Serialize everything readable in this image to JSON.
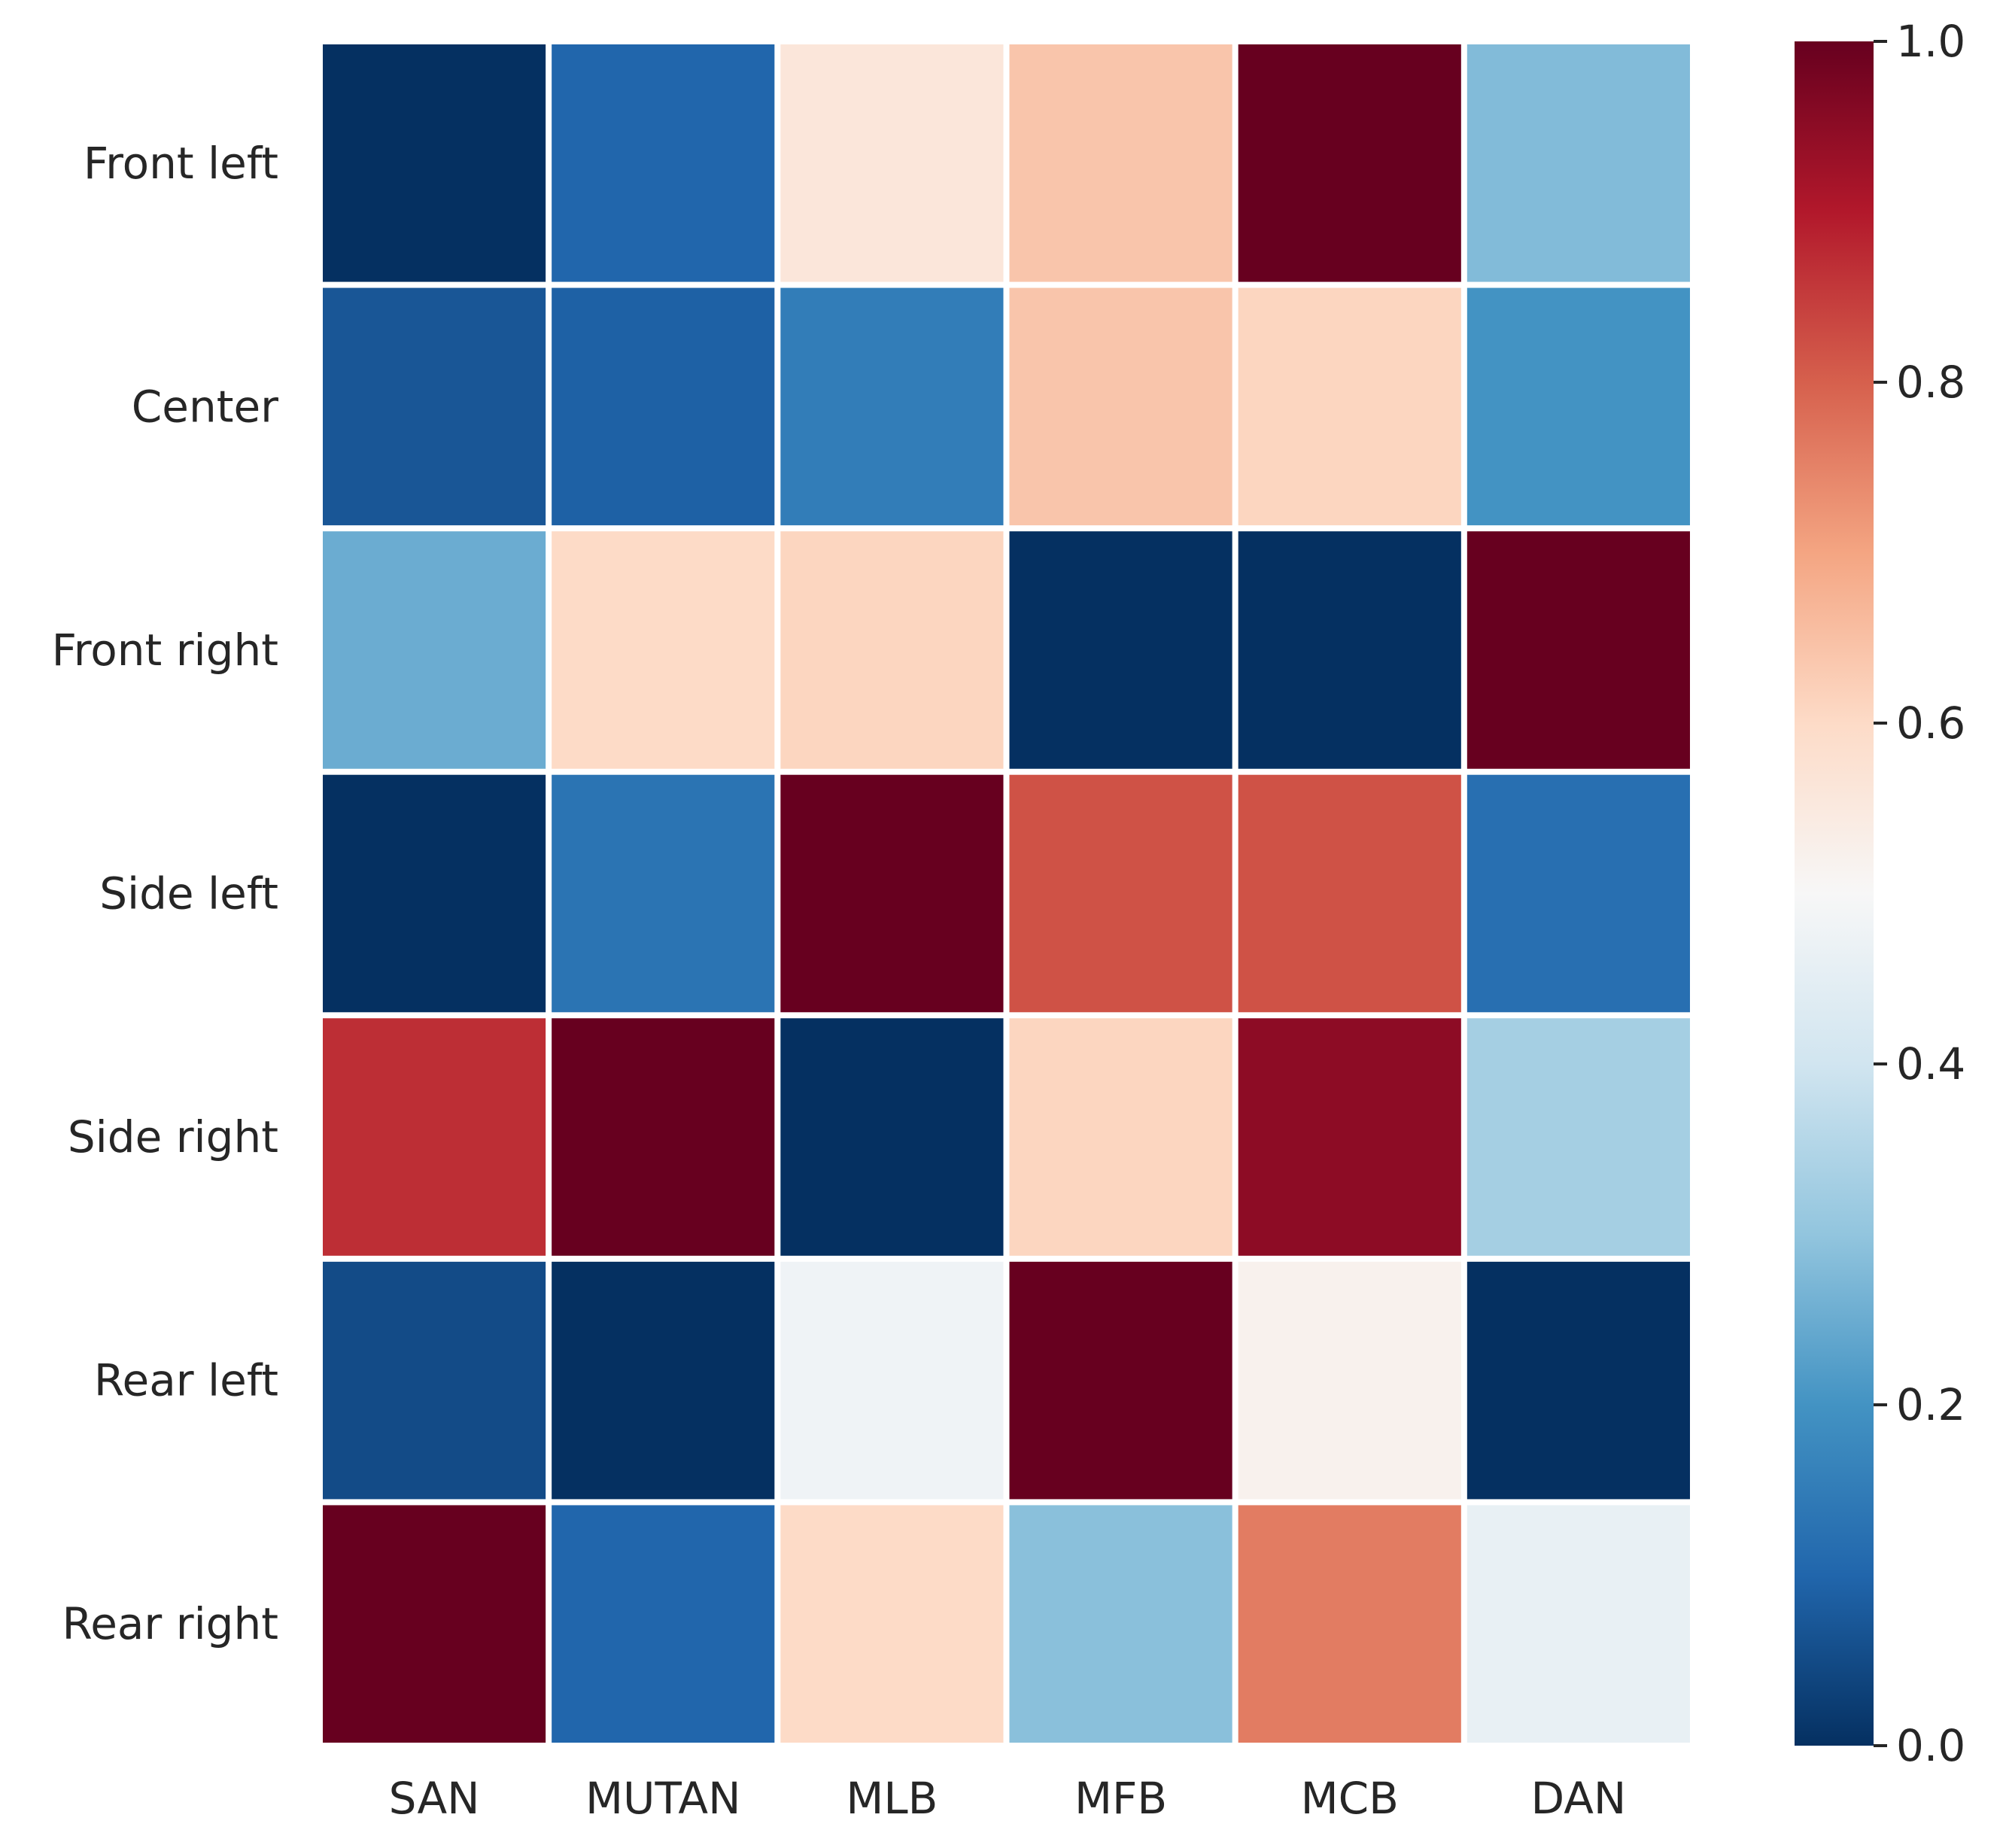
{
  "chart_data": {
    "type": "heatmap",
    "title": "",
    "xlabel": "",
    "ylabel": "",
    "columns": [
      "SAN",
      "MUTAN",
      "MLB",
      "MFB",
      "MCB",
      "DAN"
    ],
    "rows": [
      "Front left",
      "Center",
      "Front right",
      "Side left",
      "Side right",
      "Rear left",
      "Rear right"
    ],
    "values": [
      [
        0.0,
        0.1,
        0.56,
        0.64,
        1.0,
        0.28
      ],
      [
        0.07,
        0.09,
        0.15,
        0.64,
        0.61,
        0.2
      ],
      [
        0.25,
        0.6,
        0.61,
        0.0,
        0.0,
        1.0
      ],
      [
        0.0,
        0.13,
        1.0,
        0.82,
        0.82,
        0.12
      ],
      [
        0.87,
        1.0,
        0.0,
        0.61,
        0.95,
        0.33
      ],
      [
        0.05,
        0.0,
        0.48,
        1.0,
        0.52,
        0.0
      ],
      [
        1.0,
        0.1,
        0.6,
        0.29,
        0.76,
        0.46
      ]
    ],
    "colorbar": {
      "min": 0.0,
      "max": 1.0,
      "ticks": [
        "0.0",
        "0.2",
        "0.4",
        "0.6",
        "0.8",
        "1.0"
      ],
      "tick_values": [
        0.0,
        0.2,
        0.4,
        0.6,
        0.8,
        1.0
      ]
    },
    "colormap": [
      "#053061",
      "#2166ac",
      "#4393c3",
      "#92c5de",
      "#d1e5f0",
      "#f7f7f7",
      "#fddbc7",
      "#f4a582",
      "#d6604d",
      "#b2182b",
      "#67001f"
    ],
    "grid": false,
    "cell_gap_color": "#ffffff"
  }
}
